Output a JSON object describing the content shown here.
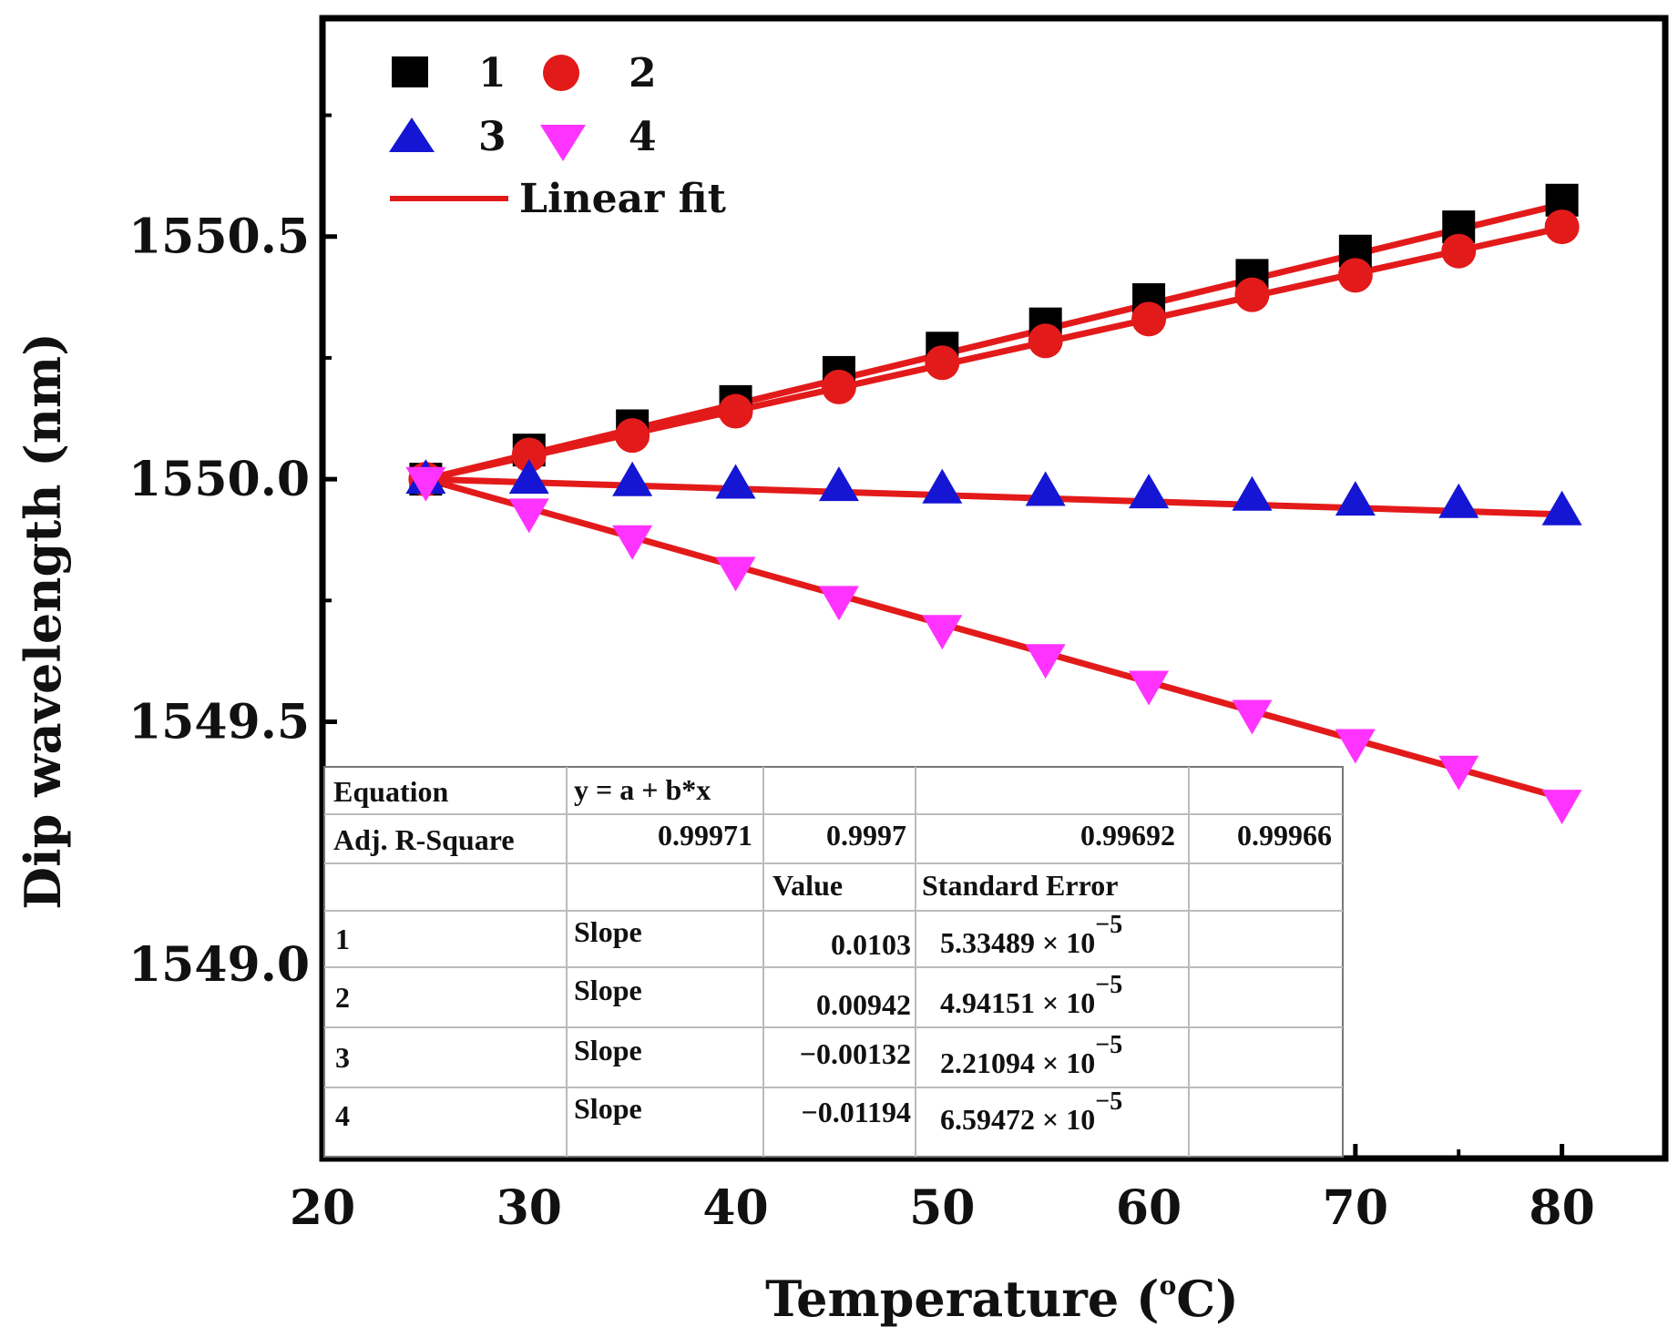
{
  "chart_data": {
    "type": "scatter",
    "title": "",
    "xlabel": "Temperature",
    "xlabel_unit": "(",
    "xlabel_sup": "o",
    "xlabel_end": "C)",
    "ylabel": "Dip wavelength (nm)",
    "xlim": [
      20,
      85
    ],
    "ylim": [
      1548.6,
      1550.95
    ],
    "xticks": [
      20,
      30,
      40,
      50,
      60,
      70,
      80
    ],
    "yticks": [
      1549.0,
      1549.5,
      1550.0,
      1550.5
    ],
    "ytick_labels": [
      "1549.0",
      "1549.5",
      "1550.0",
      "1550.5"
    ],
    "x": [
      25,
      30,
      35,
      40,
      45,
      50,
      55,
      60,
      65,
      70,
      75,
      80
    ],
    "series": [
      {
        "name": "1",
        "marker": "square",
        "color": "#000000",
        "values": [
          1550.0,
          1550.06,
          1550.11,
          1550.16,
          1550.22,
          1550.27,
          1550.32,
          1550.37,
          1550.42,
          1550.47,
          1550.52,
          1550.575
        ],
        "fit": {
          "slope": 0.0103,
          "intercept": 1549.7425
        }
      },
      {
        "name": "2",
        "marker": "circle",
        "color": "#e31a1a",
        "values": [
          1550.0,
          1550.05,
          1550.09,
          1550.14,
          1550.19,
          1550.24,
          1550.285,
          1550.33,
          1550.38,
          1550.42,
          1550.47,
          1550.52
        ],
        "fit": {
          "slope": 0.00942,
          "intercept": 1549.7645
        }
      },
      {
        "name": "3",
        "marker": "triangle-up",
        "color": "#1515d4",
        "values": [
          1550.0,
          1550.0,
          1549.995,
          1549.99,
          1549.985,
          1549.98,
          1549.975,
          1549.97,
          1549.965,
          1549.955,
          1549.95,
          1549.935
        ],
        "fit": {
          "slope": -0.00132,
          "intercept": 1550.033
        }
      },
      {
        "name": "4",
        "marker": "triangle-down",
        "color": "#ff33ff",
        "values": [
          1549.995,
          1549.93,
          1549.875,
          1549.81,
          1549.75,
          1549.69,
          1549.63,
          1549.575,
          1549.515,
          1549.455,
          1549.4,
          1549.33
        ],
        "fit": {
          "slope": -0.01194,
          "intercept": 1550.2985
        }
      }
    ],
    "fit_color": "#e31a1a",
    "legend": {
      "placement": "top-left",
      "entries": [
        "1",
        "2",
        "3",
        "4"
      ],
      "fit_label": "Linear fit"
    },
    "table": {
      "equation_label": "Equation",
      "equation": "y = a + b*x",
      "r2_label": "Adj. R-Square",
      "r2_values": [
        "0.99971",
        "0.9997",
        "0.99692",
        "0.99966"
      ],
      "value_header": "Value",
      "error_header": "Standard Error",
      "rows": [
        {
          "id": "1",
          "param": "Slope",
          "value": "0.0103",
          "error": "5.33489 × 10",
          "exp": "−5"
        },
        {
          "id": "2",
          "param": "Slope",
          "value": "0.00942",
          "error": "4.94151 × 10",
          "exp": "−5"
        },
        {
          "id": "3",
          "param": "Slope",
          "value": "−0.00132",
          "error": "2.21094 × 10",
          "exp": "−5"
        },
        {
          "id": "4",
          "param": "Slope",
          "value": "−0.01194",
          "error": "6.59472 × 10",
          "exp": "−5"
        }
      ]
    }
  }
}
